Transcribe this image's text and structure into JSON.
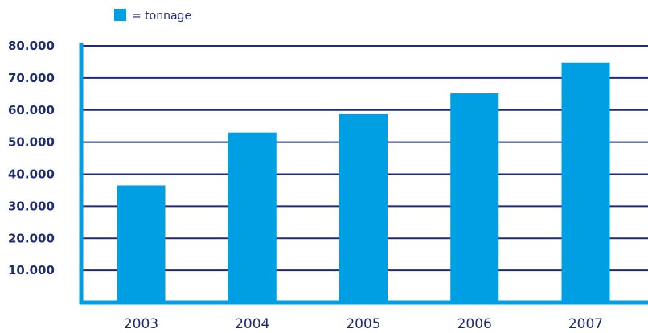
{
  "legend": {
    "label": "= tonnage"
  },
  "chart_data": {
    "type": "bar",
    "categories": [
      "2003",
      "2004",
      "2005",
      "2006",
      "2007"
    ],
    "series": [
      {
        "name": "tonnage",
        "values": [
          36500,
          53000,
          58700,
          65200,
          74800
        ]
      }
    ],
    "ylim": [
      0,
      80000
    ],
    "yticks": [
      10000,
      20000,
      30000,
      40000,
      50000,
      60000,
      70000,
      80000
    ],
    "ytick_labels": [
      "10.000",
      "20.000",
      "30.000",
      "40.000",
      "50.000",
      "60.000",
      "70.000",
      "80.000"
    ],
    "grid": true,
    "legend_position": "top",
    "colors": {
      "bar": "#009fe3",
      "axis": "#009fe3",
      "grid": "#1f2a78",
      "text": "#1f2a78"
    }
  }
}
